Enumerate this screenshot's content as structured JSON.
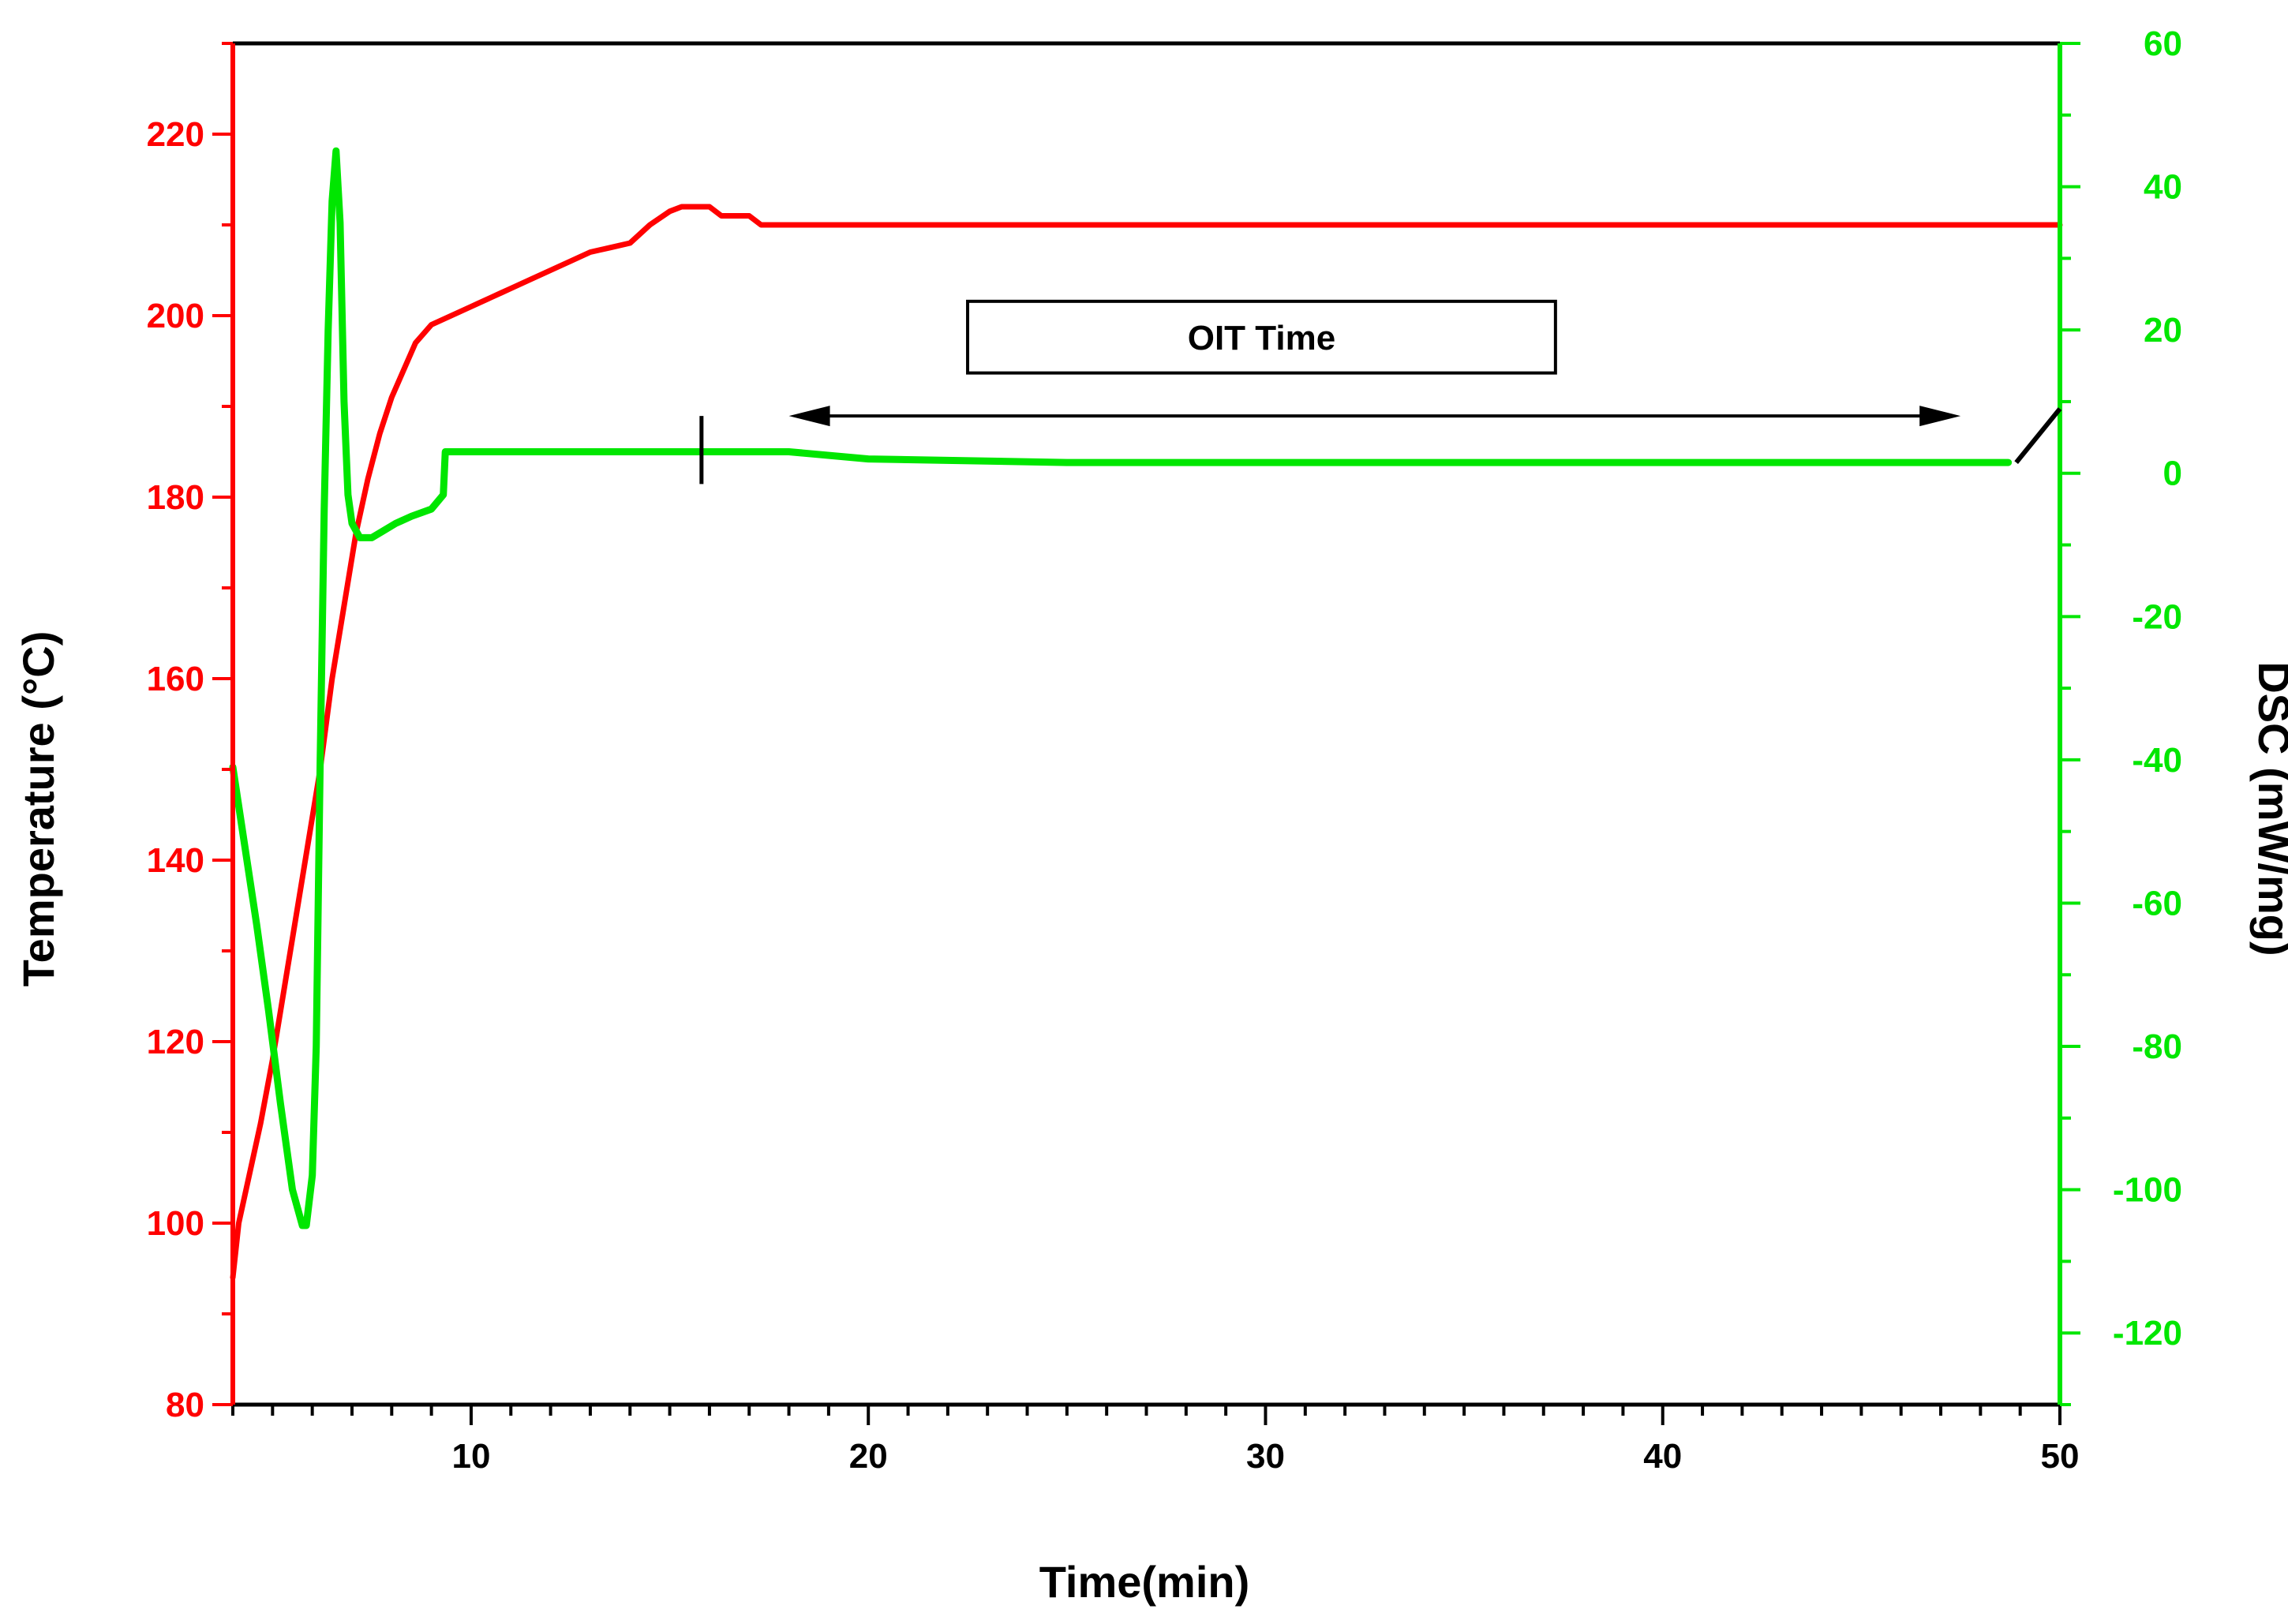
{
  "chart_data": {
    "type": "line",
    "title": "",
    "xlabel": "Time(min)",
    "ylabel_left": "Temperature (°C)",
    "ylabel_right": "DSC (mW/mg)",
    "xlim": [
      4,
      50
    ],
    "ylim_left": [
      80,
      230
    ],
    "ylim_right": [
      -130,
      60
    ],
    "x_ticks": [
      10,
      20,
      30,
      40,
      50
    ],
    "y_left_ticks": [
      80,
      100,
      120,
      140,
      160,
      180,
      200,
      220
    ],
    "y_right_ticks": [
      60,
      40,
      20,
      0,
      -20,
      -40,
      -60,
      -80,
      -100,
      -120
    ],
    "grid": false,
    "legend": "none",
    "colors": {
      "temperature": "#ff0000",
      "dsc": "#00e600",
      "frame": "#000000",
      "annotation": "#000000"
    },
    "series": [
      {
        "axis": "left",
        "x": [
          4.0,
          4.15,
          4.4,
          4.7,
          5.0,
          5.3,
          5.6,
          5.9,
          6.2,
          6.5,
          6.8,
          7.1,
          7.4,
          7.7,
          8.0,
          8.3,
          8.6,
          9.0,
          9.5,
          10.0,
          10.5,
          11.0,
          11.5,
          12.0,
          12.5,
          13.0,
          13.5,
          14.0,
          14.5,
          15.0,
          15.3,
          15.6,
          16.0,
          16.3,
          16.7,
          17.0,
          17.3,
          17.5,
          20.0,
          30.0,
          40.0,
          50.0
        ],
        "y": [
          94,
          100,
          105,
          111,
          118,
          126,
          134,
          142,
          150,
          160,
          168,
          176,
          182,
          187,
          191,
          194,
          197,
          199,
          200,
          201,
          202,
          203,
          204,
          205,
          206,
          207,
          207.5,
          208,
          210,
          211.5,
          212,
          212,
          212,
          211,
          211,
          211,
          210,
          210,
          210,
          210,
          210,
          210
        ]
      },
      {
        "axis": "right",
        "x": [
          4.0,
          4.3,
          4.6,
          4.9,
          5.2,
          5.5,
          5.75,
          5.85,
          6.0,
          6.1,
          6.2,
          6.3,
          6.4,
          6.5,
          6.6,
          6.7,
          6.8,
          6.9,
          7.0,
          7.2,
          7.5,
          7.8,
          8.1,
          8.5,
          9.0,
          9.3,
          9.35,
          10.0,
          15.0,
          17.0,
          18.0,
          20.0,
          25.0,
          30.0,
          37.0,
          45.0,
          48.7
        ],
        "y": [
          -41,
          -52,
          -63,
          -75,
          -88,
          -100,
          -105,
          -105,
          -98,
          -80,
          -40,
          -5,
          20,
          38,
          45,
          35,
          10,
          -3,
          -7,
          -9,
          -9,
          -8,
          -7,
          -6,
          -5,
          -3,
          3,
          3,
          3,
          3,
          3,
          2,
          1.5,
          1.5,
          1.5,
          1.5,
          1.5
        ]
      }
    ],
    "annotations": {
      "oit_label": "OIT Time",
      "arrow_x": [
        18,
        47.5
      ],
      "arrow_dsc_level": 8,
      "onset_marker_x": 15.8,
      "end_marker_x": [
        48.9,
        50
      ]
    }
  }
}
